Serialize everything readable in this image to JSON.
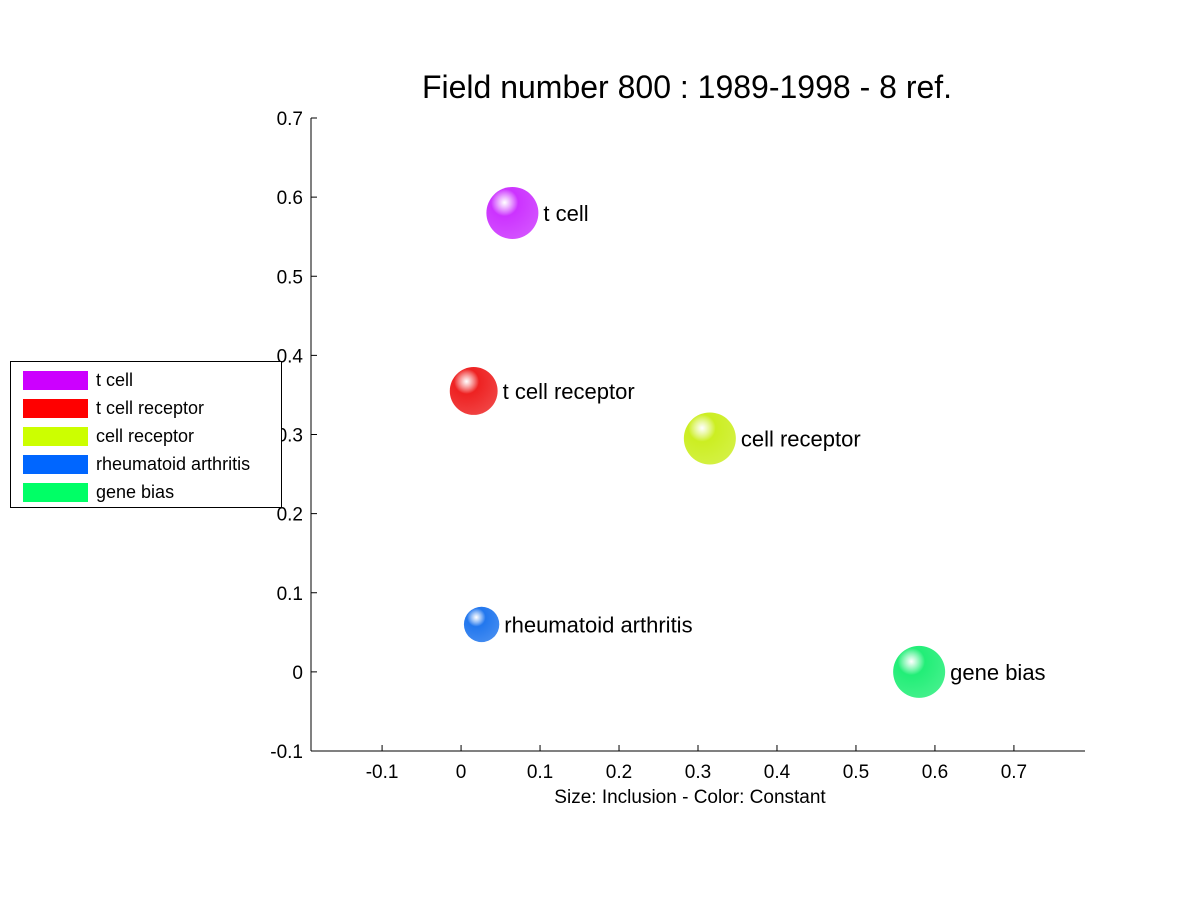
{
  "chart_data": {
    "type": "scatter",
    "title": "Field number 800 : 1989-1998  - 8 ref.",
    "xlabel": "Size: Inclusion - Color: Constant",
    "ylabel": "",
    "xlim": [
      -0.19,
      0.79
    ],
    "ylim": [
      -0.1,
      0.7
    ],
    "xticks": [
      "-0.1",
      "0",
      "0.1",
      "0.2",
      "0.3",
      "0.4",
      "0.5",
      "0.6",
      "0.7"
    ],
    "yticks": [
      "-0.1",
      "0",
      "0.1",
      "0.2",
      "0.3",
      "0.4",
      "0.5",
      "0.6",
      "0.7"
    ],
    "xtick_values": [
      -0.1,
      0,
      0.1,
      0.2,
      0.3,
      0.4,
      0.5,
      0.6,
      0.7
    ],
    "ytick_values": [
      -0.1,
      0,
      0.1,
      0.2,
      0.3,
      0.4,
      0.5,
      0.6,
      0.7
    ],
    "grid": false,
    "legend_position": "left",
    "points": [
      {
        "label": "t cell",
        "x": 0.065,
        "y": 0.58,
        "size": 1.0,
        "color": "#cc33ff"
      },
      {
        "label": "t cell receptor",
        "x": 0.016,
        "y": 0.355,
        "size": 0.92,
        "color": "#ee2222"
      },
      {
        "label": "cell receptor",
        "x": 0.315,
        "y": 0.295,
        "size": 1.0,
        "color": "#ccee22"
      },
      {
        "label": "rheumatoid arthritis",
        "x": 0.026,
        "y": 0.06,
        "size": 0.68,
        "color": "#2277ee"
      },
      {
        "label": "gene bias",
        "x": 0.58,
        "y": 0.0,
        "size": 1.0,
        "color": "#22ee77"
      }
    ]
  },
  "legend": {
    "items": [
      {
        "label": "t cell",
        "color": "#cc00ff"
      },
      {
        "label": "t cell receptor",
        "color": "#ff0000"
      },
      {
        "label": "cell receptor",
        "color": "#ccff00"
      },
      {
        "label": "rheumatoid arthritis",
        "color": "#0066ff"
      },
      {
        "label": "gene bias",
        "color": "#00ff66"
      }
    ]
  }
}
